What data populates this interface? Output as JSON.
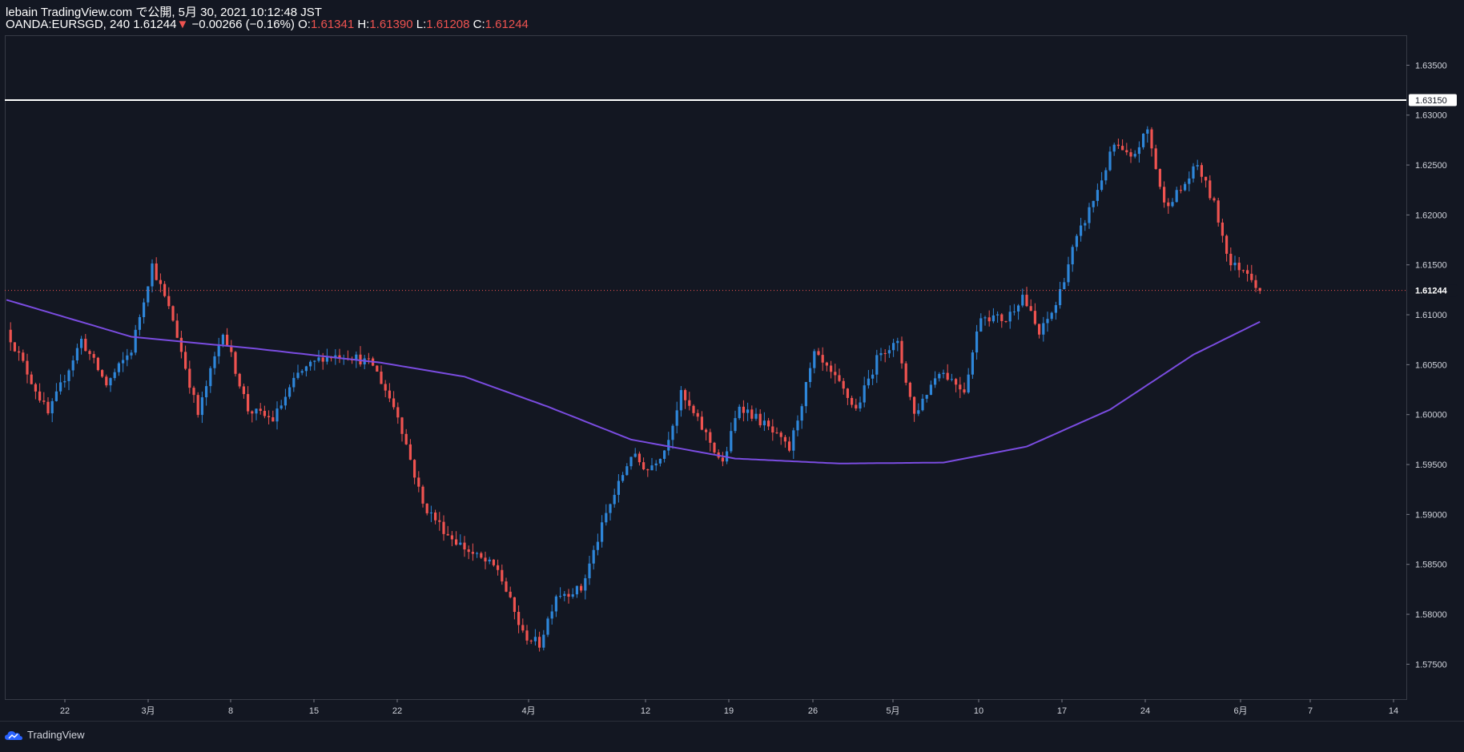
{
  "header": {
    "publish_line": "lebain TradingView.com で公開, 5月 30, 2021 10:12:48 JST",
    "symbol": "OANDA:EURSGD, 240",
    "last": "1.61244",
    "change_arrow": "▼",
    "change": "−0.00266 (−0.16%)",
    "o_label": "O:",
    "o_value": "1.61341",
    "h_label": "H:",
    "h_value": "1.61390",
    "l_label": "L:",
    "l_value": "1.61208",
    "c_label": "C:",
    "c_value": "1.61244"
  },
  "footer": {
    "brand": "TradingView"
  },
  "colors": {
    "background": "#131722",
    "up": "#2e86d9",
    "down": "#ef5350",
    "ma": "#7a4ce0",
    "hline": "#ffffff",
    "grid": "#363a45",
    "text": "#d1d4dc"
  },
  "chart_data": {
    "type": "candlestick",
    "symbol": "OANDA:EURSGD",
    "timeframe": "240",
    "grid": false,
    "ylim": [
      1.5715,
      1.638
    ],
    "y_ticks": [
      "1.57500",
      "1.58000",
      "1.58500",
      "1.59000",
      "1.59500",
      "1.60000",
      "1.60500",
      "1.61000",
      "1.61500",
      "1.62000",
      "1.62500",
      "1.63000",
      "1.63500"
    ],
    "x_ticks": [
      "22",
      "3月",
      "8",
      "15",
      "22",
      "4月",
      "12",
      "19",
      "26",
      "5月",
      "10",
      "17",
      "24",
      "6月",
      "7",
      "14"
    ],
    "horizontal_line": {
      "value": 1.6315,
      "label": "1.63150"
    },
    "last_price_label": "1.61244",
    "price_path": [
      [
        0,
        1.6085
      ],
      [
        10,
        1.6
      ],
      [
        18,
        1.6075
      ],
      [
        24,
        1.603
      ],
      [
        30,
        1.6065
      ],
      [
        35,
        1.615
      ],
      [
        40,
        1.6095
      ],
      [
        46,
        1.6
      ],
      [
        52,
        1.6085
      ],
      [
        58,
        1.6005
      ],
      [
        64,
        1.5995
      ],
      [
        70,
        1.604
      ],
      [
        76,
        1.6058
      ],
      [
        82,
        1.606
      ],
      [
        88,
        1.605
      ],
      [
        94,
        1.6
      ],
      [
        100,
        1.591
      ],
      [
        106,
        1.588
      ],
      [
        112,
        1.586
      ],
      [
        118,
        1.5845
      ],
      [
        124,
        1.578
      ],
      [
        128,
        1.577
      ],
      [
        132,
        1.582
      ],
      [
        138,
        1.5825
      ],
      [
        144,
        1.59
      ],
      [
        150,
        1.596
      ],
      [
        154,
        1.5945
      ],
      [
        158,
        1.5965
      ],
      [
        162,
        1.602
      ],
      [
        168,
        1.598
      ],
      [
        172,
        1.595
      ],
      [
        176,
        1.601
      ],
      [
        182,
        1.599
      ],
      [
        188,
        1.5965
      ],
      [
        194,
        1.606
      ],
      [
        200,
        1.603
      ],
      [
        204,
        1.6005
      ],
      [
        210,
        1.6065
      ],
      [
        214,
        1.607
      ],
      [
        218,
        1.6
      ],
      [
        224,
        1.6045
      ],
      [
        230,
        1.6025
      ],
      [
        234,
        1.61
      ],
      [
        240,
        1.6095
      ],
      [
        244,
        1.612
      ],
      [
        248,
        1.608
      ],
      [
        252,
        1.611
      ],
      [
        256,
        1.6165
      ],
      [
        262,
        1.6225
      ],
      [
        266,
        1.627
      ],
      [
        270,
        1.6255
      ],
      [
        274,
        1.6285
      ],
      [
        278,
        1.621
      ],
      [
        282,
        1.6225
      ],
      [
        286,
        1.625
      ],
      [
        290,
        1.621
      ],
      [
        294,
        1.615
      ],
      [
        298,
        1.6145
      ],
      [
        301,
        1.6124
      ]
    ],
    "ma_path": [
      [
        0,
        1.6115
      ],
      [
        30,
        1.6078
      ],
      [
        60,
        1.6066
      ],
      [
        90,
        1.6052
      ],
      [
        110,
        1.6038
      ],
      [
        130,
        1.6008
      ],
      [
        150,
        1.5975
      ],
      [
        175,
        1.5956
      ],
      [
        200,
        1.5951
      ],
      [
        225,
        1.5952
      ],
      [
        245,
        1.5968
      ],
      [
        265,
        1.6005
      ],
      [
        285,
        1.606
      ],
      [
        301,
        1.6093
      ]
    ]
  }
}
